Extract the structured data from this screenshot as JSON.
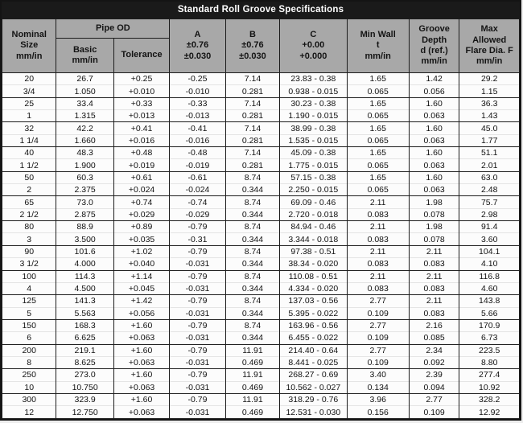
{
  "title": "Standard Roll Groove Specifications",
  "colors": {
    "title_bg": "#1a1a1a",
    "title_text": "#ffffff",
    "header_bg": "#a8a8a8",
    "border": "#1c1c1c",
    "row_bg": "#fcfcfc"
  },
  "header": {
    "nominal_size": "Nominal\nSize\nmm/in",
    "pipe_od": "Pipe OD",
    "od_basic": "Basic\nmm/in",
    "od_tolerance": "Tolerance",
    "a": "A\n±0.76\n±0.030",
    "b": "B\n±0.76\n±0.030",
    "c": "C\n+0.00\n+0.000",
    "min_wall": "Min Wall\nt\nmm/in",
    "groove_depth": "Groove\nDepth\nd (ref.)\nmm/in",
    "max_flare": "Max\nAllowed\nFlare Dia. F\nmm/in"
  },
  "table": {
    "column_keys": [
      "nominal-size",
      "od-basic",
      "od-tolerance",
      "a",
      "b",
      "c",
      "min-wall-t",
      "groove-depth-d",
      "max-flare-f"
    ],
    "rows": [
      [
        "20",
        "26.7",
        "+0.25",
        "-0.25",
        "7.14",
        "23.83 - 0.38",
        "1.65",
        "1.42",
        "29.2"
      ],
      [
        "3/4",
        "1.050",
        "+0.010",
        "-0.010",
        "0.281",
        "0.938 - 0.015",
        "0.065",
        "0.056",
        "1.15"
      ],
      [
        "25",
        "33.4",
        "+0.33",
        "-0.33",
        "7.14",
        "30.23 - 0.38",
        "1.65",
        "1.60",
        "36.3"
      ],
      [
        "1",
        "1.315",
        "+0.013",
        "-0.013",
        "0.281",
        "1.190 - 0.015",
        "0.065",
        "0.063",
        "1.43"
      ],
      [
        "32",
        "42.2",
        "+0.41",
        "-0.41",
        "7.14",
        "38.99 - 0.38",
        "1.65",
        "1.60",
        "45.0"
      ],
      [
        "1 1/4",
        "1.660",
        "+0.016",
        "-0.016",
        "0.281",
        "1.535 - 0.015",
        "0.065",
        "0.063",
        "1.77"
      ],
      [
        "40",
        "48.3",
        "+0.48",
        "-0.48",
        "7.14",
        "45.09 - 0.38",
        "1.65",
        "1.60",
        "51.1"
      ],
      [
        "1 1/2",
        "1.900",
        "+0.019",
        "-0.019",
        "0.281",
        "1.775 - 0.015",
        "0.065",
        "0.063",
        "2.01"
      ],
      [
        "50",
        "60.3",
        "+0.61",
        "-0.61",
        "8.74",
        "57.15 - 0.38",
        "1.65",
        "1.60",
        "63.0"
      ],
      [
        "2",
        "2.375",
        "+0.024",
        "-0.024",
        "0.344",
        "2.250 - 0.015",
        "0.065",
        "0.063",
        "2.48"
      ],
      [
        "65",
        "73.0",
        "+0.74",
        "-0.74",
        "8.74",
        "69.09 - 0.46",
        "2.11",
        "1.98",
        "75.7"
      ],
      [
        "2 1/2",
        "2.875",
        "+0.029",
        "-0.029",
        "0.344",
        "2.720 - 0.018",
        "0.083",
        "0.078",
        "2.98"
      ],
      [
        "80",
        "88.9",
        "+0.89",
        "-0.79",
        "8.74",
        "84.94 - 0.46",
        "2.11",
        "1.98",
        "91.4"
      ],
      [
        "3",
        "3.500",
        "+0.035",
        "-0.31",
        "0.344",
        "3.344 - 0.018",
        "0.083",
        "0.078",
        "3.60"
      ],
      [
        "90",
        "101.6",
        "+1.02",
        "-0.79",
        "8.74",
        "97.38 - 0.51",
        "2.11",
        "2.11",
        "104.1"
      ],
      [
        "3 1/2",
        "4.000",
        "+0.040",
        "-0.031",
        "0.344",
        "38.34 - 0.020",
        "0.083",
        "0.083",
        "4.10"
      ],
      [
        "100",
        "114.3",
        "+1.14",
        "-0.79",
        "8.74",
        "110.08 - 0.51",
        "2.11",
        "2.11",
        "116.8"
      ],
      [
        "4",
        "4.500",
        "+0.045",
        "-0.031",
        "0.344",
        "4.334 - 0.020",
        "0.083",
        "0.083",
        "4.60"
      ],
      [
        "125",
        "141.3",
        "+1.42",
        "-0.79",
        "8.74",
        "137.03 - 0.56",
        "2.77",
        "2.11",
        "143.8"
      ],
      [
        "5",
        "5.563",
        "+0.056",
        "-0.031",
        "0.344",
        "5.395 - 0.022",
        "0.109",
        "0.083",
        "5.66"
      ],
      [
        "150",
        "168.3",
        "+1.60",
        "-0.79",
        "8.74",
        "163.96 - 0.56",
        "2.77",
        "2.16",
        "170.9"
      ],
      [
        "6",
        "6.625",
        "+0.063",
        "-0.031",
        "0.344",
        "6.455 - 0.022",
        "0.109",
        "0.085",
        "6.73"
      ],
      [
        "200",
        "219.1",
        "+1.60",
        "-0.79",
        "11.91",
        "214.40 - 0.64",
        "2.77",
        "2.34",
        "223.5"
      ],
      [
        "8",
        "8.625",
        "+0.063",
        "-0.031",
        "0.469",
        "8.441 - 0.025",
        "0.109",
        "0.092",
        "8.80"
      ],
      [
        "250",
        "273.0",
        "+1.60",
        "-0.79",
        "11.91",
        "268.27 - 0.69",
        "3.40",
        "2.39",
        "277.4"
      ],
      [
        "10",
        "10.750",
        "+0.063",
        "-0.031",
        "0.469",
        "10.562 - 0.027",
        "0.134",
        "0.094",
        "10.92"
      ],
      [
        "300",
        "323.9",
        "+1.60",
        "-0.79",
        "11.91",
        "318.29 - 0.76",
        "3.96",
        "2.77",
        "328.2"
      ],
      [
        "12",
        "12.750",
        "+0.063",
        "-0.031",
        "0.469",
        "12.531 - 0.030",
        "0.156",
        "0.109",
        "12.92"
      ]
    ]
  }
}
